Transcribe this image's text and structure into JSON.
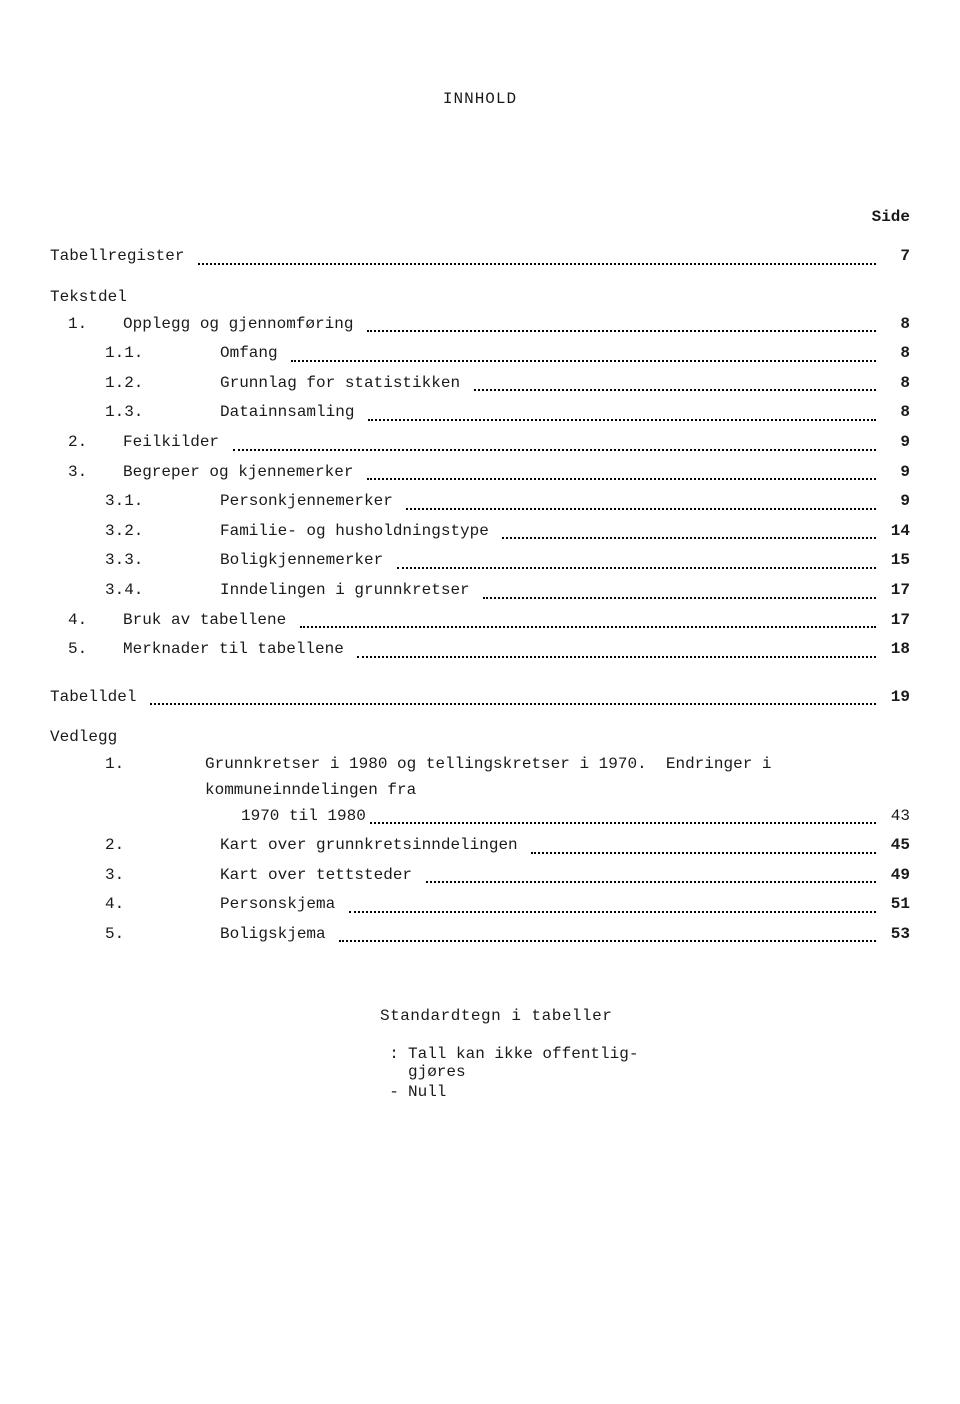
{
  "title": "INNHOLD",
  "page_label": "Side",
  "entries": [
    {
      "kind": "line",
      "indent": 0,
      "num": "",
      "label": "Tabellregister",
      "page": "7"
    },
    {
      "kind": "heading",
      "label": "Tekstdel"
    },
    {
      "kind": "line",
      "indent": 1,
      "num": "1.",
      "label": "Opplegg og gjennomføring",
      "page": "8"
    },
    {
      "kind": "line",
      "indent": 2,
      "num": "1.1.",
      "label": "Omfang",
      "page": "8"
    },
    {
      "kind": "line",
      "indent": 2,
      "num": "1.2.",
      "label": "Grunnlag for statistikken",
      "page": "8"
    },
    {
      "kind": "line",
      "indent": 2,
      "num": "1.3.",
      "label": "Datainnsamling",
      "page": "8"
    },
    {
      "kind": "line",
      "indent": 1,
      "num": "2.",
      "label": "Feilkilder",
      "page": "9"
    },
    {
      "kind": "line",
      "indent": 1,
      "num": "3.",
      "label": "Begreper og kjennemerker",
      "page": "9"
    },
    {
      "kind": "line",
      "indent": 2,
      "num": "3.1.",
      "label": "Personkjennemerker",
      "page": "9"
    },
    {
      "kind": "line",
      "indent": 2,
      "num": "3.2.",
      "label": "Familie- og husholdningstype",
      "page": "14"
    },
    {
      "kind": "line",
      "indent": 2,
      "num": "3.3.",
      "label": "Boligkjennemerker",
      "page": "15"
    },
    {
      "kind": "line",
      "indent": 2,
      "num": "3.4.",
      "label": "Inndelingen i grunnkretser",
      "page": "17"
    },
    {
      "kind": "line",
      "indent": 1,
      "num": "4.",
      "label": "Bruk av tabellene",
      "page": "17"
    },
    {
      "kind": "line",
      "indent": 1,
      "num": "5.",
      "label": "Merknader til tabellene",
      "page": "18"
    },
    {
      "kind": "spacer"
    },
    {
      "kind": "line",
      "indent": 0,
      "num": "",
      "label": "Tabelldel",
      "page": "19"
    },
    {
      "kind": "heading",
      "label": "Vedlegg"
    },
    {
      "kind": "multiline",
      "num": "1.",
      "line1": "Grunnkretser i 1980 og tellingskretser i 1970.  Endringer i kommuneinndelingen fra",
      "line2": "1970 til 1980",
      "page": "43"
    },
    {
      "kind": "line",
      "indent": 2,
      "num": "2.",
      "label": "Kart over grunnkretsinndelingen",
      "page": "45"
    },
    {
      "kind": "line",
      "indent": 2,
      "num": "3.",
      "label": "Kart over tettsteder",
      "page": "49"
    },
    {
      "kind": "line",
      "indent": 2,
      "num": "4.",
      "label": "Personskjema",
      "page": "51"
    },
    {
      "kind": "line",
      "indent": 2,
      "num": "5.",
      "label": "Boligskjema",
      "page": "53"
    }
  ],
  "standard": {
    "title": "Standardtegn i tabeller",
    "rows": [
      {
        "symbol": ":",
        "desc": "Tall kan ikke offentlig-\ngjøres"
      },
      {
        "symbol": "-",
        "desc": "Null"
      }
    ]
  }
}
